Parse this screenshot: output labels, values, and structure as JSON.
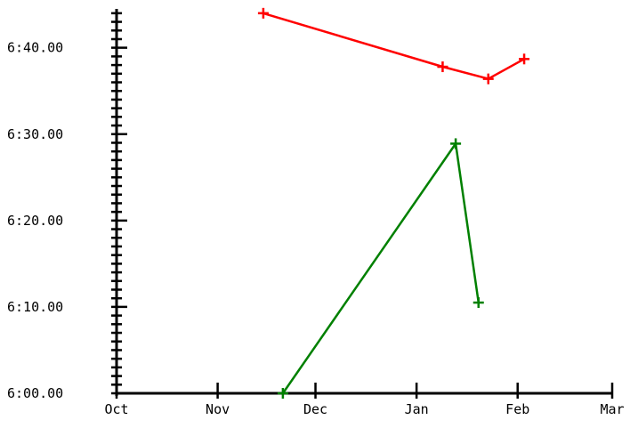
{
  "chart_data": {
    "type": "line",
    "title": "",
    "x": {
      "type": "date",
      "range": [
        "2015-10-01",
        "2016-03-01"
      ],
      "tick_labels": [
        "Oct",
        "Nov",
        "Dec",
        "Jan",
        "Feb",
        "Mar"
      ],
      "ticks": [
        "2015-10-01",
        "2015-11-01",
        "2015-12-01",
        "2016-01-01",
        "2016-02-01",
        "2016-03-01"
      ]
    },
    "y": {
      "unit": "min:sec",
      "range": [
        "6:00.00",
        "6:44.50"
      ],
      "tick_labels": [
        "6:00.00",
        "6:10.00",
        "6:20.00",
        "6:30.00",
        "6:40.00"
      ],
      "minor_step_seconds": 1
    },
    "series": [
      {
        "color": "#ff0000",
        "points": [
          {
            "x": "2015-11-15",
            "y": "6:44.00"
          },
          {
            "x": "2016-01-09",
            "y": "6:37.80"
          },
          {
            "x": "2016-01-23",
            "y": "6:36.40"
          },
          {
            "x": "2016-02-03",
            "y": "6:38.70"
          }
        ]
      },
      {
        "color": "#008000",
        "points": [
          {
            "x": "2015-11-21",
            "y": "6:00.00"
          },
          {
            "x": "2016-01-13",
            "y": "6:28.90"
          },
          {
            "x": "2016-01-20",
            "y": "6:10.50"
          }
        ]
      }
    ]
  }
}
